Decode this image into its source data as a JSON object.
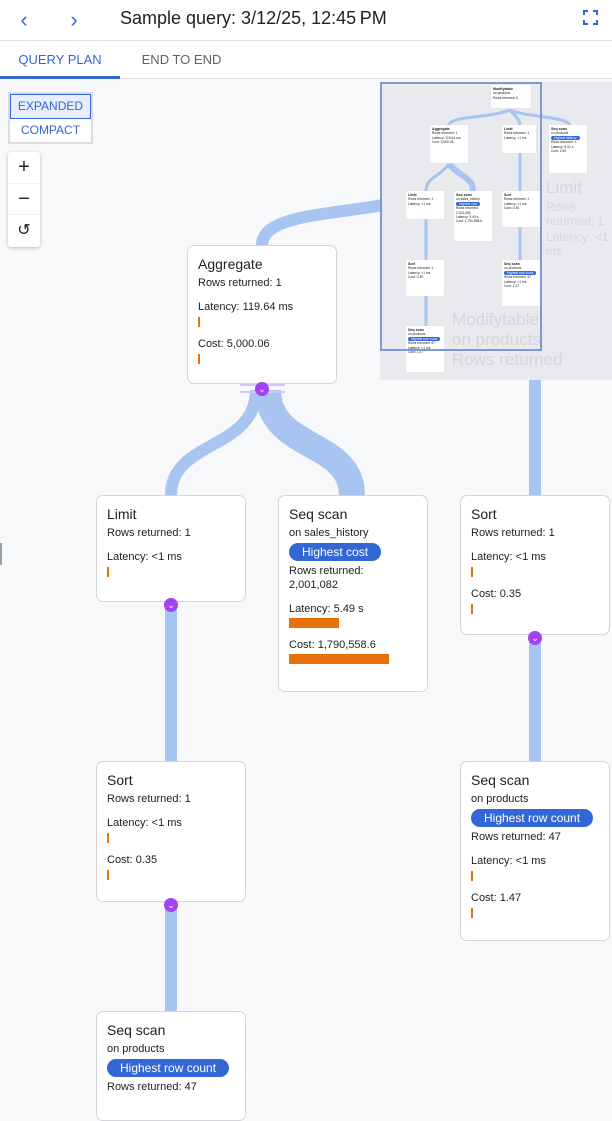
{
  "header": {
    "title": "Sample query: 3/12/25, 12:45 PM",
    "back_icon": "chevron-left-icon",
    "forward_icon": "chevron-right-icon",
    "fullscreen_icon": "fullscreen-icon"
  },
  "tabs": [
    {
      "label": "QUERY PLAN",
      "active": true
    },
    {
      "label": "END TO END",
      "active": false
    }
  ],
  "view_mode": {
    "options": [
      "EXPANDED",
      "COMPACT"
    ],
    "selected": "EXPANDED"
  },
  "zoom_controls": {
    "zoom_in": "+",
    "zoom_out": "−",
    "reset": "↺"
  },
  "colors": {
    "accent": "#3367d6",
    "bar": "#e8710a",
    "flow": "#a8c4f0",
    "chevron": "#a142f4"
  },
  "nodes": {
    "aggregate": {
      "title": "Aggregate",
      "rows": "Rows returned: 1",
      "latency": "Latency: 119.64 ms",
      "cost": "Cost: 5,000.06"
    },
    "limit": {
      "title": "Limit",
      "rows": "Rows returned: 1",
      "latency": "Latency: <1 ms"
    },
    "seq_sales": {
      "title": "Seq scan",
      "on": "on sales_history",
      "badge": "Highest cost",
      "rows_label": "Rows returned:",
      "rows_value": "2,001,082",
      "latency": "Latency: 5.49 s",
      "cost": "Cost: 1,790,558.6"
    },
    "sort_right": {
      "title": "Sort",
      "rows": "Rows returned: 1",
      "latency": "Latency: <1 ms",
      "cost": "Cost: 0.35"
    },
    "sort_left": {
      "title": "Sort",
      "rows": "Rows returned: 1",
      "latency": "Latency: <1 ms",
      "cost": "Cost: 0.35"
    },
    "seq_products_right": {
      "title": "Seq scan",
      "on": "on products",
      "badge": "Highest row count",
      "rows": "Rows returned: 47",
      "latency": "Latency: <1 ms",
      "cost": "Cost: 1.47"
    },
    "seq_products_left": {
      "title": "Seq scan",
      "on": "on products",
      "badge": "Highest row count",
      "rows": "Rows returned: 47"
    }
  },
  "minimap": {
    "ghost": [
      "Modifytable",
      "on products",
      "Rows returned",
      "Limit",
      "Rows returned: 1",
      "Latency: <1 ms"
    ],
    "modify": {
      "title": "Modifytable",
      "on": "on products",
      "rows": "Rows returned: 0"
    },
    "aggregate": {
      "title": "Aggregate",
      "rows": "Rows returned: 1",
      "latency": "Latency: 119.64 ms",
      "cost": "Cost: 5,000.06"
    },
    "limit1": {
      "title": "Limit",
      "rows": "Rows returned: 1",
      "latency": "Latency: <1 ms"
    },
    "seq_top": {
      "title": "Seq scan",
      "on": "on products",
      "badge": "Highest latency",
      "rows": "Rows returned: 1",
      "latency": "Latency: 5.41 s",
      "cost": "Cost: 1.59"
    },
    "limit2": {
      "title": "Limit",
      "rows": "Rows returned: 1",
      "latency": "Latency: <1 ms"
    },
    "seq_sales": {
      "title": "Seq scan",
      "on": "on sales_history",
      "badge": "Highest cost",
      "rows": "Rows returned: 2,001,082",
      "latency": "Latency: 5.49 s",
      "cost": "Cost: 1,790,558.6"
    },
    "sort1": {
      "title": "Sort",
      "rows": "Rows returned: 1",
      "latency": "Latency: <1 ms",
      "cost": "Cost: 0.35"
    },
    "sort2": {
      "title": "Sort",
      "rows": "Rows returned: 1",
      "latency": "Latency: <1 ms",
      "cost": "Cost: 0.35"
    },
    "seq_p1": {
      "title": "Seq scan",
      "on": "on products",
      "badge": "Highest row count",
      "rows": "Rows returned: 47",
      "latency": "Latency: <1 ms",
      "cost": "Cost: 1.47"
    },
    "seq_p2": {
      "title": "Seq scan",
      "on": "on products",
      "badge": "Highest row count",
      "rows": "Rows returned: 47",
      "latency": "Latency: <1 ms",
      "cost": "Cost: 1.47"
    }
  }
}
